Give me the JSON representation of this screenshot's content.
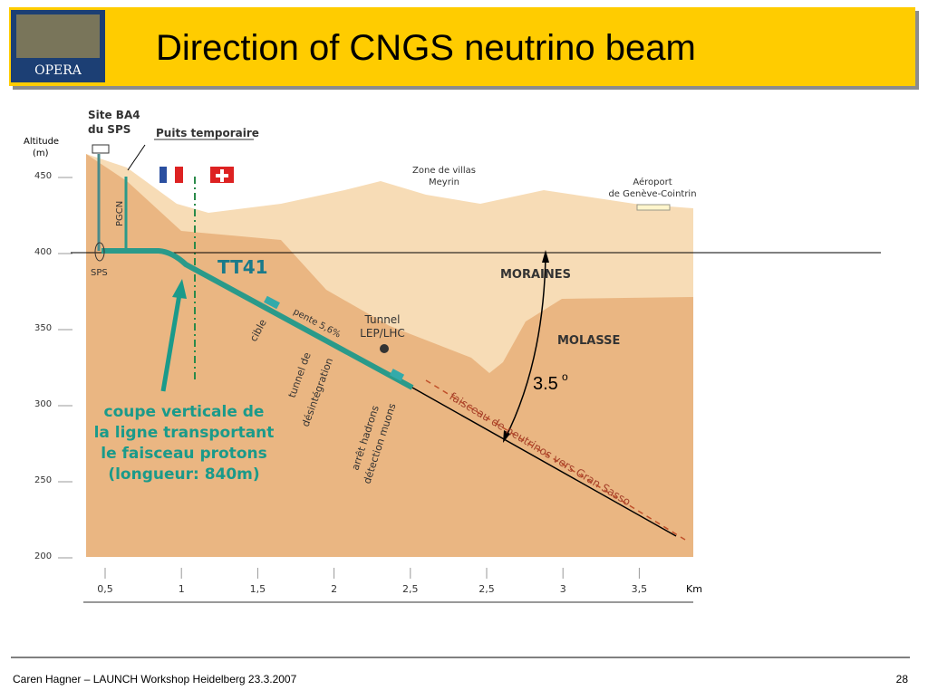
{
  "header": {
    "logo": "OPERA",
    "title": "Direction of CNGS neutrino beam"
  },
  "diagram": {
    "altitude_label": [
      "Altitude",
      "(m)"
    ],
    "altitude_ticks": [
      "450",
      "400",
      "350",
      "300",
      "250",
      "200"
    ],
    "km_ticks": [
      "0,5",
      "1",
      "1,5",
      "2",
      "2,5",
      "2,5",
      "3",
      "3,5"
    ],
    "km_unit": "Km",
    "site": [
      "Site BA4",
      "du SPS"
    ],
    "shaft": "Puits temporaire",
    "pgcn": "PGCN",
    "sps": "SPS",
    "tt41": "TT41",
    "villas": [
      "Zone de villas",
      "Meyrin"
    ],
    "airport": [
      "Aéroport",
      "de Genève-Cointrin"
    ],
    "moraines": "MORAINES",
    "molasse": "MOLASSE",
    "tunnel_lep": [
      "Tunnel",
      "LEP/LHC"
    ],
    "slope": "pente 5,6%",
    "target": "cible",
    "decay": [
      "tunnel de",
      "désintégration"
    ],
    "hadron_stop": [
      "arrêt hadrons",
      "détection muons"
    ],
    "beam": "faisceau de neutrinos vers Gran Sasso",
    "angle": {
      "value": "3.5",
      "unit": "o"
    },
    "caption": [
      "coupe verticale de",
      "la ligne transportant",
      "le faisceau protons",
      "(longueur: 840m)"
    ]
  },
  "footer": {
    "author": "Caren Hagner – LAUNCH Workshop Heidelberg 23.3.2007",
    "page": "28"
  }
}
